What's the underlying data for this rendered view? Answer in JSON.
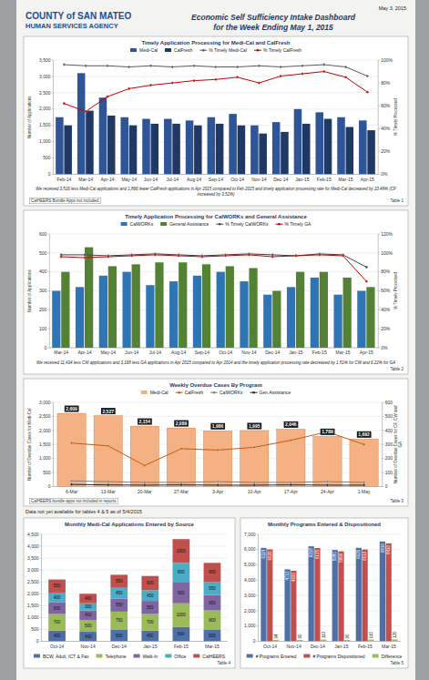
{
  "header": {
    "logo_line1": "COUNTY of SAN MATEO",
    "logo_line2": "HUMAN SERVICES AGENCY",
    "date": "May 3, 2015",
    "title": "Economic Self Sufficiency Intake Dashboard",
    "subtitle": "for the Week Ending May 1, 2015"
  },
  "note": "Data not yet available for tables 4 & 5 as of 5/4/2015",
  "chart_data": [
    {
      "type": "bar",
      "title": "Timely Application Processing for Medi-Cal and CalFresh",
      "legend": "top",
      "grid": true,
      "categories": [
        "Feb-14",
        "Mar-14",
        "Apr-14",
        "May-14",
        "Jun-14",
        "Jul-14",
        "Aug-14",
        "Sep-14",
        "Oct-14",
        "Nov-14",
        "Dec-14",
        "Jan-15",
        "Feb-15",
        "Mar-15",
        "Apr-15"
      ],
      "series": [
        {
          "name": "Medi-Cal",
          "type": "bar",
          "color": "#2f5597",
          "values": [
            1750,
            3100,
            2350,
            1750,
            1700,
            1700,
            1650,
            1750,
            1850,
            1500,
            1600,
            2000,
            1900,
            1750,
            1650
          ]
        },
        {
          "name": "CalFresh",
          "type": "bar",
          "color": "#1f3864",
          "values": [
            1500,
            1950,
            1800,
            1500,
            1550,
            1550,
            1500,
            1550,
            1500,
            1250,
            1300,
            1550,
            1700,
            1450,
            1350
          ]
        },
        {
          "name": "% Timely Medi-Cal",
          "type": "line",
          "axis": "y2",
          "color": "#595959",
          "marker": "circle",
          "values": [
            96,
            95,
            95,
            94,
            95,
            94,
            95,
            94,
            94,
            95,
            94,
            95,
            96,
            94,
            86
          ]
        },
        {
          "name": "% Timely CalFresh",
          "type": "line",
          "axis": "y2",
          "color": "#c00000",
          "marker": "circle",
          "values": [
            62,
            55,
            68,
            75,
            78,
            80,
            82,
            83,
            85,
            80,
            86,
            88,
            90,
            85,
            72
          ]
        }
      ],
      "ylim": [
        0,
        3500
      ],
      "yticks": [
        0,
        500,
        {
          "value": 1000,
          "label": "1,000"
        },
        {
          "value": 1500,
          "label": "1,500"
        },
        {
          "value": 2000,
          "label": "2,000"
        },
        {
          "value": 2500,
          "label": "2,500"
        },
        {
          "value": 3000,
          "label": "3,000"
        },
        {
          "value": 3500,
          "label": "3,500"
        }
      ],
      "y2lim": [
        0,
        100
      ],
      "y2ticks": [
        {
          "value": 0,
          "label": "0%"
        },
        {
          "value": 20,
          "label": "20%"
        },
        {
          "value": 40,
          "label": "40%"
        },
        {
          "value": 60,
          "label": "60%"
        },
        {
          "value": 80,
          "label": "80%"
        },
        {
          "value": 100,
          "label": "100%"
        }
      ],
      "ylabel": "Number of Applications",
      "y2label": "% Timely Processed",
      "footnote": "We received 3,516 less Medi-Cal applications and 1,866 fewer CalFresh applications in Apr 2015 compared to Feb 2015 and timely application processing rate for Medi-Cal decreased by 10.49% (CF increased by 3.52%)",
      "annotation": "CalHEERS Bundle Apps not included",
      "table_label": "Table 1"
    },
    {
      "type": "bar",
      "title": "Timely Application Processing for CalWORKs and General Assistance",
      "legend": "top",
      "grid": true,
      "categories": [
        "Mar-14",
        "Apr-14",
        "May-14",
        "Jun-14",
        "Jul-14",
        "Aug-14",
        "Sep-14",
        "Oct-14",
        "Nov-14",
        "Dec-14",
        "Jan-15",
        "Feb-15",
        "Mar-15",
        "Apr-15"
      ],
      "series": [
        {
          "name": "CalWORKs",
          "type": "bar",
          "color": "#2e75b6",
          "values": [
            300,
            320,
            380,
            400,
            330,
            350,
            380,
            400,
            350,
            280,
            320,
            370,
            280,
            300
          ]
        },
        {
          "name": "General Assistance",
          "type": "bar",
          "color": "#548235",
          "values": [
            400,
            530,
            430,
            440,
            450,
            450,
            440,
            430,
            420,
            300,
            400,
            400,
            370,
            320
          ]
        },
        {
          "name": "% Timely CalWORKs",
          "type": "line",
          "axis": "y2",
          "color": "#404040",
          "marker": "circle",
          "values": [
            98,
            98,
            97,
            98,
            99,
            98,
            97,
            98,
            99,
            98,
            97,
            99,
            98,
            85
          ]
        },
        {
          "name": "% Timely GA",
          "type": "line",
          "axis": "y2",
          "color": "#c00000",
          "marker": "circle",
          "values": [
            96,
            95,
            96,
            97,
            98,
            97,
            96,
            97,
            98,
            96,
            97,
            98,
            97,
            70
          ]
        }
      ],
      "ylim": [
        0,
        600
      ],
      "yticks": [
        0,
        100,
        200,
        300,
        400,
        500,
        600
      ],
      "y2lim": [
        0,
        120
      ],
      "y2ticks": [
        {
          "value": 0,
          "label": "0%"
        },
        {
          "value": 20,
          "label": "20%"
        },
        {
          "value": 40,
          "label": "40%"
        },
        {
          "value": 60,
          "label": "60%"
        },
        {
          "value": 80,
          "label": "80%"
        },
        {
          "value": 100,
          "label": "100%"
        },
        {
          "value": 120,
          "label": "120%"
        }
      ],
      "ylabel": "Number of Applications",
      "y2label": "% Timely Processed",
      "footnote": "We received 11,434 less CW applications and 3,168 less GA applications in Apr 2015 compared to Apr 2014 and the timely application processing rate decreased by 1.51% for CW and 6.22% for GA",
      "table_label": "Table 2"
    },
    {
      "type": "bar",
      "title": "Weekly Overdue Cases By Program",
      "legend": "top",
      "grid": true,
      "data_labels": true,
      "categories": [
        "6-Mar",
        "13-Mar",
        "20-Mar",
        "27-Mar",
        "3-Apr",
        "10-Apr",
        "17-Apr",
        "24-Apr",
        "1-May"
      ],
      "series": [
        {
          "name": "Medi-Cal",
          "type": "bar",
          "color": "#f4b183",
          "values": [
            2609,
            2527,
            2154,
            2089,
            1986,
            1995,
            2046,
            1789,
            1692
          ],
          "value_labels": [
            "2,609",
            "2,527",
            "2,154",
            "2,089",
            "1,986",
            "1,995",
            "2,046",
            "1,789",
            "1,692"
          ]
        },
        {
          "name": "CalFresh",
          "type": "line",
          "axis": "y2",
          "color": "#c55a11",
          "marker": "circle",
          "values": [
            310,
            290,
            150,
            270,
            260,
            280,
            330,
            390,
            300
          ]
        },
        {
          "name": "CalWORKs",
          "type": "line",
          "axis": "y2",
          "color": "#7f7f7f",
          "marker": "circle",
          "values": [
            40,
            35,
            30,
            30,
            35,
            30,
            30,
            35,
            30
          ]
        },
        {
          "name": "Gen Assistance",
          "type": "line",
          "axis": "y2",
          "color": "#262626",
          "marker": "circle",
          "values": [
            15,
            12,
            10,
            12,
            10,
            10,
            12,
            10,
            10
          ]
        }
      ],
      "ylim": [
        0,
        3000
      ],
      "yticks": [
        0,
        500,
        {
          "value": 1000,
          "label": "1,000"
        },
        {
          "value": 1500,
          "label": "1,500"
        },
        {
          "value": 2000,
          "label": "2,000"
        },
        {
          "value": 2500,
          "label": "2,500"
        },
        {
          "value": 3000,
          "label": "3,000"
        }
      ],
      "y2lim": [
        0,
        600
      ],
      "y2ticks": [
        0,
        100,
        200,
        300,
        400,
        500,
        600
      ],
      "ylabel": "Number of Overdue Cases for Medi-Cal",
      "y2label": "Number of Overdue Cases for CF, CW and GA",
      "annotation": "CalHEERS bundle apps not included in reports",
      "table_label": "Table 3"
    },
    {
      "type": "bar",
      "title": "Monthly Medi-Cal Applications Entered by Source",
      "legend": "bottom",
      "grid": true,
      "stacked": true,
      "data_labels": true,
      "categories": [
        "Oct-14",
        "Nov-14",
        "Dec-14",
        "Jan-15",
        "Feb-15",
        "Mar-15"
      ],
      "series": [
        {
          "name": "BCW, Adult, ICT & Fax",
          "color": "#4f6fa8",
          "values": [
            450,
            400,
            500,
            450,
            600,
            500
          ]
        },
        {
          "name": "Telephone",
          "color": "#9bbb59",
          "values": [
            700,
            500,
            750,
            700,
            1000,
            800
          ]
        },
        {
          "name": "Walk-In",
          "color": "#8064a2",
          "values": [
            500,
            400,
            550,
            550,
            900,
            650
          ]
        },
        {
          "name": "Office",
          "color": "#4bacc6",
          "values": [
            400,
            300,
            450,
            450,
            800,
            550
          ]
        },
        {
          "name": "CalHEERS",
          "color": "#c0504d",
          "values": [
            550,
            400,
            550,
            600,
            1000,
            800
          ]
        }
      ],
      "ylim": [
        0,
        4500
      ],
      "yticks": [
        0,
        500,
        {
          "value": 1000,
          "label": "1,000"
        },
        {
          "value": 1500,
          "label": "1,500"
        },
        {
          "value": 2000,
          "label": "2,000"
        },
        {
          "value": 2500,
          "label": "2,500"
        },
        {
          "value": 3000,
          "label": "3,000"
        },
        {
          "value": 3500,
          "label": "3,500"
        },
        {
          "value": 4000,
          "label": "4,000"
        },
        {
          "value": 4500,
          "label": "4,500"
        }
      ],
      "table_label": "Table 4"
    },
    {
      "type": "bar",
      "title": "Monthly Programs Entered & Dispositioned",
      "legend": "bottom",
      "grid": true,
      "data_labels": true,
      "categories": [
        "Oct-14",
        "Nov-14",
        "Dec-14",
        "Jan-15",
        "Feb-15",
        "Mar-15"
      ],
      "series": [
        {
          "name": "# Programs Entered",
          "color": "#4f6fa8",
          "values": [
            6114,
            4710,
            6218,
            5980,
            6120,
            6530
          ]
        },
        {
          "name": "# Programs Dispositioned",
          "color": "#c0504d",
          "values": [
            6020,
            4620,
            6105,
            5890,
            6010,
            6410
          ]
        },
        {
          "name": "Difference",
          "color": "#9bbb59",
          "values": [
            94,
            90,
            113,
            90,
            110,
            120
          ]
        }
      ],
      "ylim": [
        0,
        7000
      ],
      "yticks": [
        0,
        {
          "value": 1000,
          "label": "1,000"
        },
        {
          "value": 2000,
          "label": "2,000"
        },
        {
          "value": 3000,
          "label": "3,000"
        },
        {
          "value": 4000,
          "label": "4,000"
        },
        {
          "value": 5000,
          "label": "5,000"
        },
        {
          "value": 6000,
          "label": "6,000"
        },
        {
          "value": 7000,
          "label": "7,000"
        }
      ],
      "table_label": "Table 5"
    }
  ]
}
